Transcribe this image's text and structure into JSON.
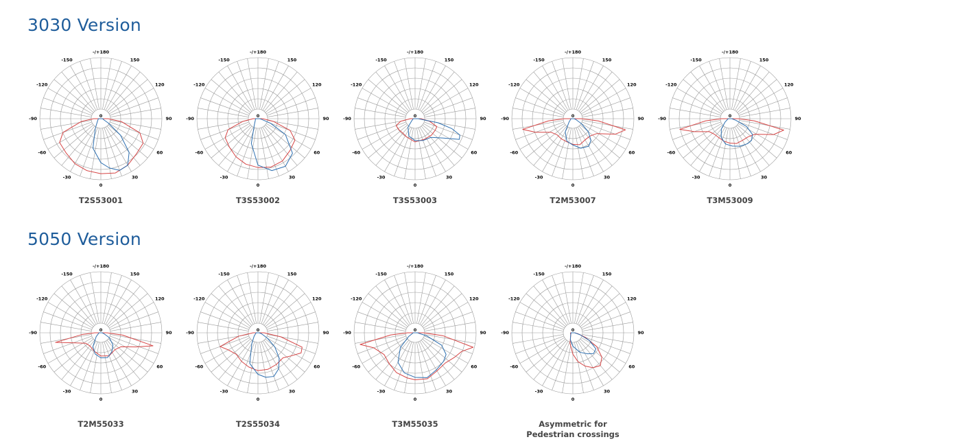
{
  "sections": [
    {
      "title": "3030 Version"
    },
    {
      "title": "5050 Version"
    }
  ],
  "ticks": {
    "top": "-/+180",
    "bottom": "0",
    "center": "0",
    "left": [
      "-150",
      "-120",
      "-90",
      "-60",
      "-30"
    ],
    "right": [
      "150",
      "120",
      "90",
      "60",
      "30"
    ]
  },
  "colors": {
    "title": "#1f5d9b",
    "c0_c180": "#d64545",
    "c90_c270": "#2d6fb0",
    "grid": "#9a9a9a"
  },
  "chart_data": [
    {
      "type": "polar",
      "section": 0,
      "label": "T2S53001",
      "series": [
        {
          "color": "red",
          "points": [
            [
              -90,
              0.12
            ],
            [
              -82,
              0.32
            ],
            [
              -70,
              0.66
            ],
            [
              -60,
              0.78
            ],
            [
              -45,
              0.8
            ],
            [
              -30,
              0.85
            ],
            [
              -15,
              0.88
            ],
            [
              0,
              0.9
            ],
            [
              15,
              0.92
            ],
            [
              30,
              0.88
            ],
            [
              45,
              0.82
            ],
            [
              60,
              0.8
            ],
            [
              70,
              0.68
            ],
            [
              82,
              0.34
            ],
            [
              90,
              0.12
            ]
          ]
        },
        {
          "color": "blue",
          "points": [
            [
              -90,
              0.04
            ],
            [
              -60,
              0.06
            ],
            [
              -30,
              0.18
            ],
            [
              -15,
              0.5
            ],
            [
              0,
              0.72
            ],
            [
              10,
              0.82
            ],
            [
              20,
              0.9
            ],
            [
              30,
              0.88
            ],
            [
              40,
              0.72
            ],
            [
              50,
              0.42
            ],
            [
              60,
              0.14
            ],
            [
              70,
              0.05
            ],
            [
              90,
              0.03
            ]
          ]
        }
      ]
    },
    {
      "type": "polar",
      "section": 0,
      "label": "T3S53002",
      "series": [
        {
          "color": "red",
          "points": [
            [
              -90,
              0.08
            ],
            [
              -80,
              0.25
            ],
            [
              -70,
              0.52
            ],
            [
              -60,
              0.62
            ],
            [
              -45,
              0.66
            ],
            [
              -30,
              0.72
            ],
            [
              -15,
              0.77
            ],
            [
              0,
              0.8
            ],
            [
              15,
              0.82
            ],
            [
              30,
              0.8
            ],
            [
              45,
              0.74
            ],
            [
              60,
              0.7
            ],
            [
              70,
              0.56
            ],
            [
              80,
              0.26
            ],
            [
              90,
              0.08
            ]
          ]
        },
        {
          "color": "blue",
          "points": [
            [
              -90,
              0.04
            ],
            [
              -60,
              0.05
            ],
            [
              -30,
              0.12
            ],
            [
              -15,
              0.42
            ],
            [
              0,
              0.76
            ],
            [
              15,
              0.88
            ],
            [
              30,
              0.9
            ],
            [
              45,
              0.8
            ],
            [
              60,
              0.52
            ],
            [
              70,
              0.22
            ],
            [
              80,
              0.06
            ],
            [
              90,
              0.03
            ]
          ]
        }
      ]
    },
    {
      "type": "polar",
      "section": 0,
      "label": "T3S53003",
      "series": [
        {
          "color": "red",
          "points": [
            [
              -90,
              0.08
            ],
            [
              -80,
              0.24
            ],
            [
              -70,
              0.33
            ],
            [
              -55,
              0.32
            ],
            [
              -40,
              0.31
            ],
            [
              -25,
              0.33
            ],
            [
              0,
              0.38
            ],
            [
              25,
              0.37
            ],
            [
              45,
              0.38
            ],
            [
              60,
              0.38
            ],
            [
              70,
              0.38
            ],
            [
              80,
              0.24
            ],
            [
              90,
              0.1
            ]
          ]
        },
        {
          "color": "blue",
          "points": [
            [
              -90,
              0.03
            ],
            [
              -60,
              0.06
            ],
            [
              -40,
              0.18
            ],
            [
              -20,
              0.3
            ],
            [
              0,
              0.36
            ],
            [
              20,
              0.38
            ],
            [
              40,
              0.4
            ],
            [
              55,
              0.55
            ],
            [
              65,
              0.8
            ],
            [
              70,
              0.78
            ],
            [
              75,
              0.62
            ],
            [
              80,
              0.38
            ],
            [
              90,
              0.05
            ]
          ]
        }
      ]
    },
    {
      "type": "polar",
      "section": 0,
      "label": "T2M53007",
      "series": [
        {
          "color": "red",
          "points": [
            [
              -90,
              0.14
            ],
            [
              -85,
              0.4
            ],
            [
              -78,
              0.84
            ],
            [
              -70,
              0.65
            ],
            [
              -58,
              0.42
            ],
            [
              -45,
              0.37
            ],
            [
              -30,
              0.38
            ],
            [
              -15,
              0.39
            ],
            [
              0,
              0.42
            ],
            [
              15,
              0.44
            ],
            [
              30,
              0.4
            ],
            [
              45,
              0.4
            ],
            [
              58,
              0.46
            ],
            [
              70,
              0.74
            ],
            [
              78,
              0.88
            ],
            [
              85,
              0.42
            ],
            [
              90,
              0.14
            ]
          ]
        },
        {
          "color": "blue",
          "points": [
            [
              -90,
              0.03
            ],
            [
              -50,
              0.08
            ],
            [
              -30,
              0.25
            ],
            [
              -15,
              0.38
            ],
            [
              0,
              0.43
            ],
            [
              15,
              0.5
            ],
            [
              30,
              0.52
            ],
            [
              40,
              0.46
            ],
            [
              50,
              0.33
            ],
            [
              60,
              0.16
            ],
            [
              75,
              0.05
            ],
            [
              90,
              0.02
            ]
          ]
        }
      ]
    },
    {
      "type": "polar",
      "section": 0,
      "label": "T3M53009",
      "series": [
        {
          "color": "red",
          "points": [
            [
              -90,
              0.14
            ],
            [
              -85,
              0.4
            ],
            [
              -78,
              0.84
            ],
            [
              -70,
              0.62
            ],
            [
              -58,
              0.4
            ],
            [
              -45,
              0.36
            ],
            [
              -30,
              0.36
            ],
            [
              -15,
              0.38
            ],
            [
              0,
              0.4
            ],
            [
              15,
              0.42
            ],
            [
              30,
              0.41
            ],
            [
              45,
              0.42
            ],
            [
              58,
              0.48
            ],
            [
              70,
              0.76
            ],
            [
              78,
              0.9
            ],
            [
              85,
              0.4
            ],
            [
              90,
              0.14
            ]
          ]
        },
        {
          "color": "blue",
          "points": [
            [
              -90,
              0.03
            ],
            [
              -55,
              0.1
            ],
            [
              -40,
              0.22
            ],
            [
              -25,
              0.34
            ],
            [
              -10,
              0.42
            ],
            [
              5,
              0.45
            ],
            [
              20,
              0.48
            ],
            [
              35,
              0.5
            ],
            [
              45,
              0.5
            ],
            [
              55,
              0.45
            ],
            [
              65,
              0.3
            ],
            [
              75,
              0.1
            ],
            [
              90,
              0.03
            ]
          ]
        }
      ]
    },
    {
      "type": "polar",
      "section": 1,
      "label": "T2M55033",
      "series": [
        {
          "color": "red",
          "points": [
            [
              -90,
              0.1
            ],
            [
              -85,
              0.3
            ],
            [
              -78,
              0.76
            ],
            [
              -70,
              0.48
            ],
            [
              -55,
              0.3
            ],
            [
              -40,
              0.28
            ],
            [
              -20,
              0.32
            ],
            [
              0,
              0.38
            ],
            [
              20,
              0.4
            ],
            [
              40,
              0.36
            ],
            [
              55,
              0.4
            ],
            [
              68,
              0.62
            ],
            [
              76,
              0.88
            ],
            [
              84,
              0.36
            ],
            [
              90,
              0.1
            ]
          ]
        },
        {
          "color": "blue",
          "points": [
            [
              -90,
              0.03
            ],
            [
              -50,
              0.1
            ],
            [
              -30,
              0.26
            ],
            [
              -15,
              0.36
            ],
            [
              0,
              0.41
            ],
            [
              15,
              0.42
            ],
            [
              30,
              0.36
            ],
            [
              45,
              0.28
            ],
            [
              60,
              0.16
            ],
            [
              75,
              0.05
            ],
            [
              90,
              0.02
            ]
          ]
        }
      ]
    },
    {
      "type": "polar",
      "section": 1,
      "label": "T2S55034",
      "series": [
        {
          "color": "red",
          "points": [
            [
              -90,
              0.08
            ],
            [
              -80,
              0.32
            ],
            [
              -70,
              0.66
            ],
            [
              -60,
              0.56
            ],
            [
              -45,
              0.5
            ],
            [
              -30,
              0.54
            ],
            [
              -15,
              0.58
            ],
            [
              0,
              0.62
            ],
            [
              15,
              0.62
            ],
            [
              30,
              0.6
            ],
            [
              45,
              0.58
            ],
            [
              55,
              0.66
            ],
            [
              65,
              0.78
            ],
            [
              72,
              0.76
            ],
            [
              80,
              0.38
            ],
            [
              90,
              0.1
            ]
          ]
        },
        {
          "color": "blue",
          "points": [
            [
              -90,
              0.03
            ],
            [
              -50,
              0.08
            ],
            [
              -30,
              0.2
            ],
            [
              -15,
              0.52
            ],
            [
              0,
              0.68
            ],
            [
              10,
              0.74
            ],
            [
              20,
              0.76
            ],
            [
              30,
              0.68
            ],
            [
              40,
              0.54
            ],
            [
              50,
              0.36
            ],
            [
              60,
              0.18
            ],
            [
              75,
              0.06
            ],
            [
              90,
              0.02
            ]
          ]
        }
      ]
    },
    {
      "type": "polar",
      "section": 1,
      "label": "T3M55035",
      "series": [
        {
          "color": "red",
          "points": [
            [
              -90,
              0.12
            ],
            [
              -85,
              0.4
            ],
            [
              -78,
              0.92
            ],
            [
              -70,
              0.72
            ],
            [
              -55,
              0.62
            ],
            [
              -40,
              0.66
            ],
            [
              -25,
              0.72
            ],
            [
              -10,
              0.75
            ],
            [
              0,
              0.77
            ],
            [
              15,
              0.78
            ],
            [
              30,
              0.72
            ],
            [
              45,
              0.7
            ],
            [
              58,
              0.76
            ],
            [
              68,
              0.82
            ],
            [
              76,
              0.98
            ],
            [
              84,
              0.46
            ],
            [
              90,
              0.14
            ]
          ]
        },
        {
          "color": "blue",
          "points": [
            [
              -90,
              0.03
            ],
            [
              -60,
              0.12
            ],
            [
              -45,
              0.34
            ],
            [
              -30,
              0.56
            ],
            [
              -15,
              0.68
            ],
            [
              0,
              0.73
            ],
            [
              15,
              0.76
            ],
            [
              30,
              0.7
            ],
            [
              45,
              0.66
            ],
            [
              55,
              0.62
            ],
            [
              65,
              0.48
            ],
            [
              75,
              0.2
            ],
            [
              90,
              0.04
            ]
          ]
        }
      ]
    },
    {
      "type": "polar",
      "section": 1,
      "label": "Asymmetric for\nPedestrian crossings",
      "series": [
        {
          "color": "red",
          "points": [
            [
              -90,
              0.04
            ],
            [
              -45,
              0.05
            ],
            [
              -15,
              0.18
            ],
            [
              0,
              0.35
            ],
            [
              10,
              0.48
            ],
            [
              20,
              0.58
            ],
            [
              30,
              0.66
            ],
            [
              40,
              0.7
            ],
            [
              50,
              0.62
            ],
            [
              60,
              0.45
            ],
            [
              70,
              0.22
            ],
            [
              80,
              0.08
            ],
            [
              90,
              0.03
            ]
          ]
        },
        {
          "color": "blue",
          "points": [
            [
              -90,
              0.03
            ],
            [
              -45,
              0.05
            ],
            [
              -20,
              0.12
            ],
            [
              0,
              0.22
            ],
            [
              20,
              0.34
            ],
            [
              35,
              0.42
            ],
            [
              45,
              0.48
            ],
            [
              55,
              0.46
            ],
            [
              65,
              0.3
            ],
            [
              75,
              0.12
            ],
            [
              90,
              0.03
            ]
          ]
        }
      ]
    }
  ]
}
